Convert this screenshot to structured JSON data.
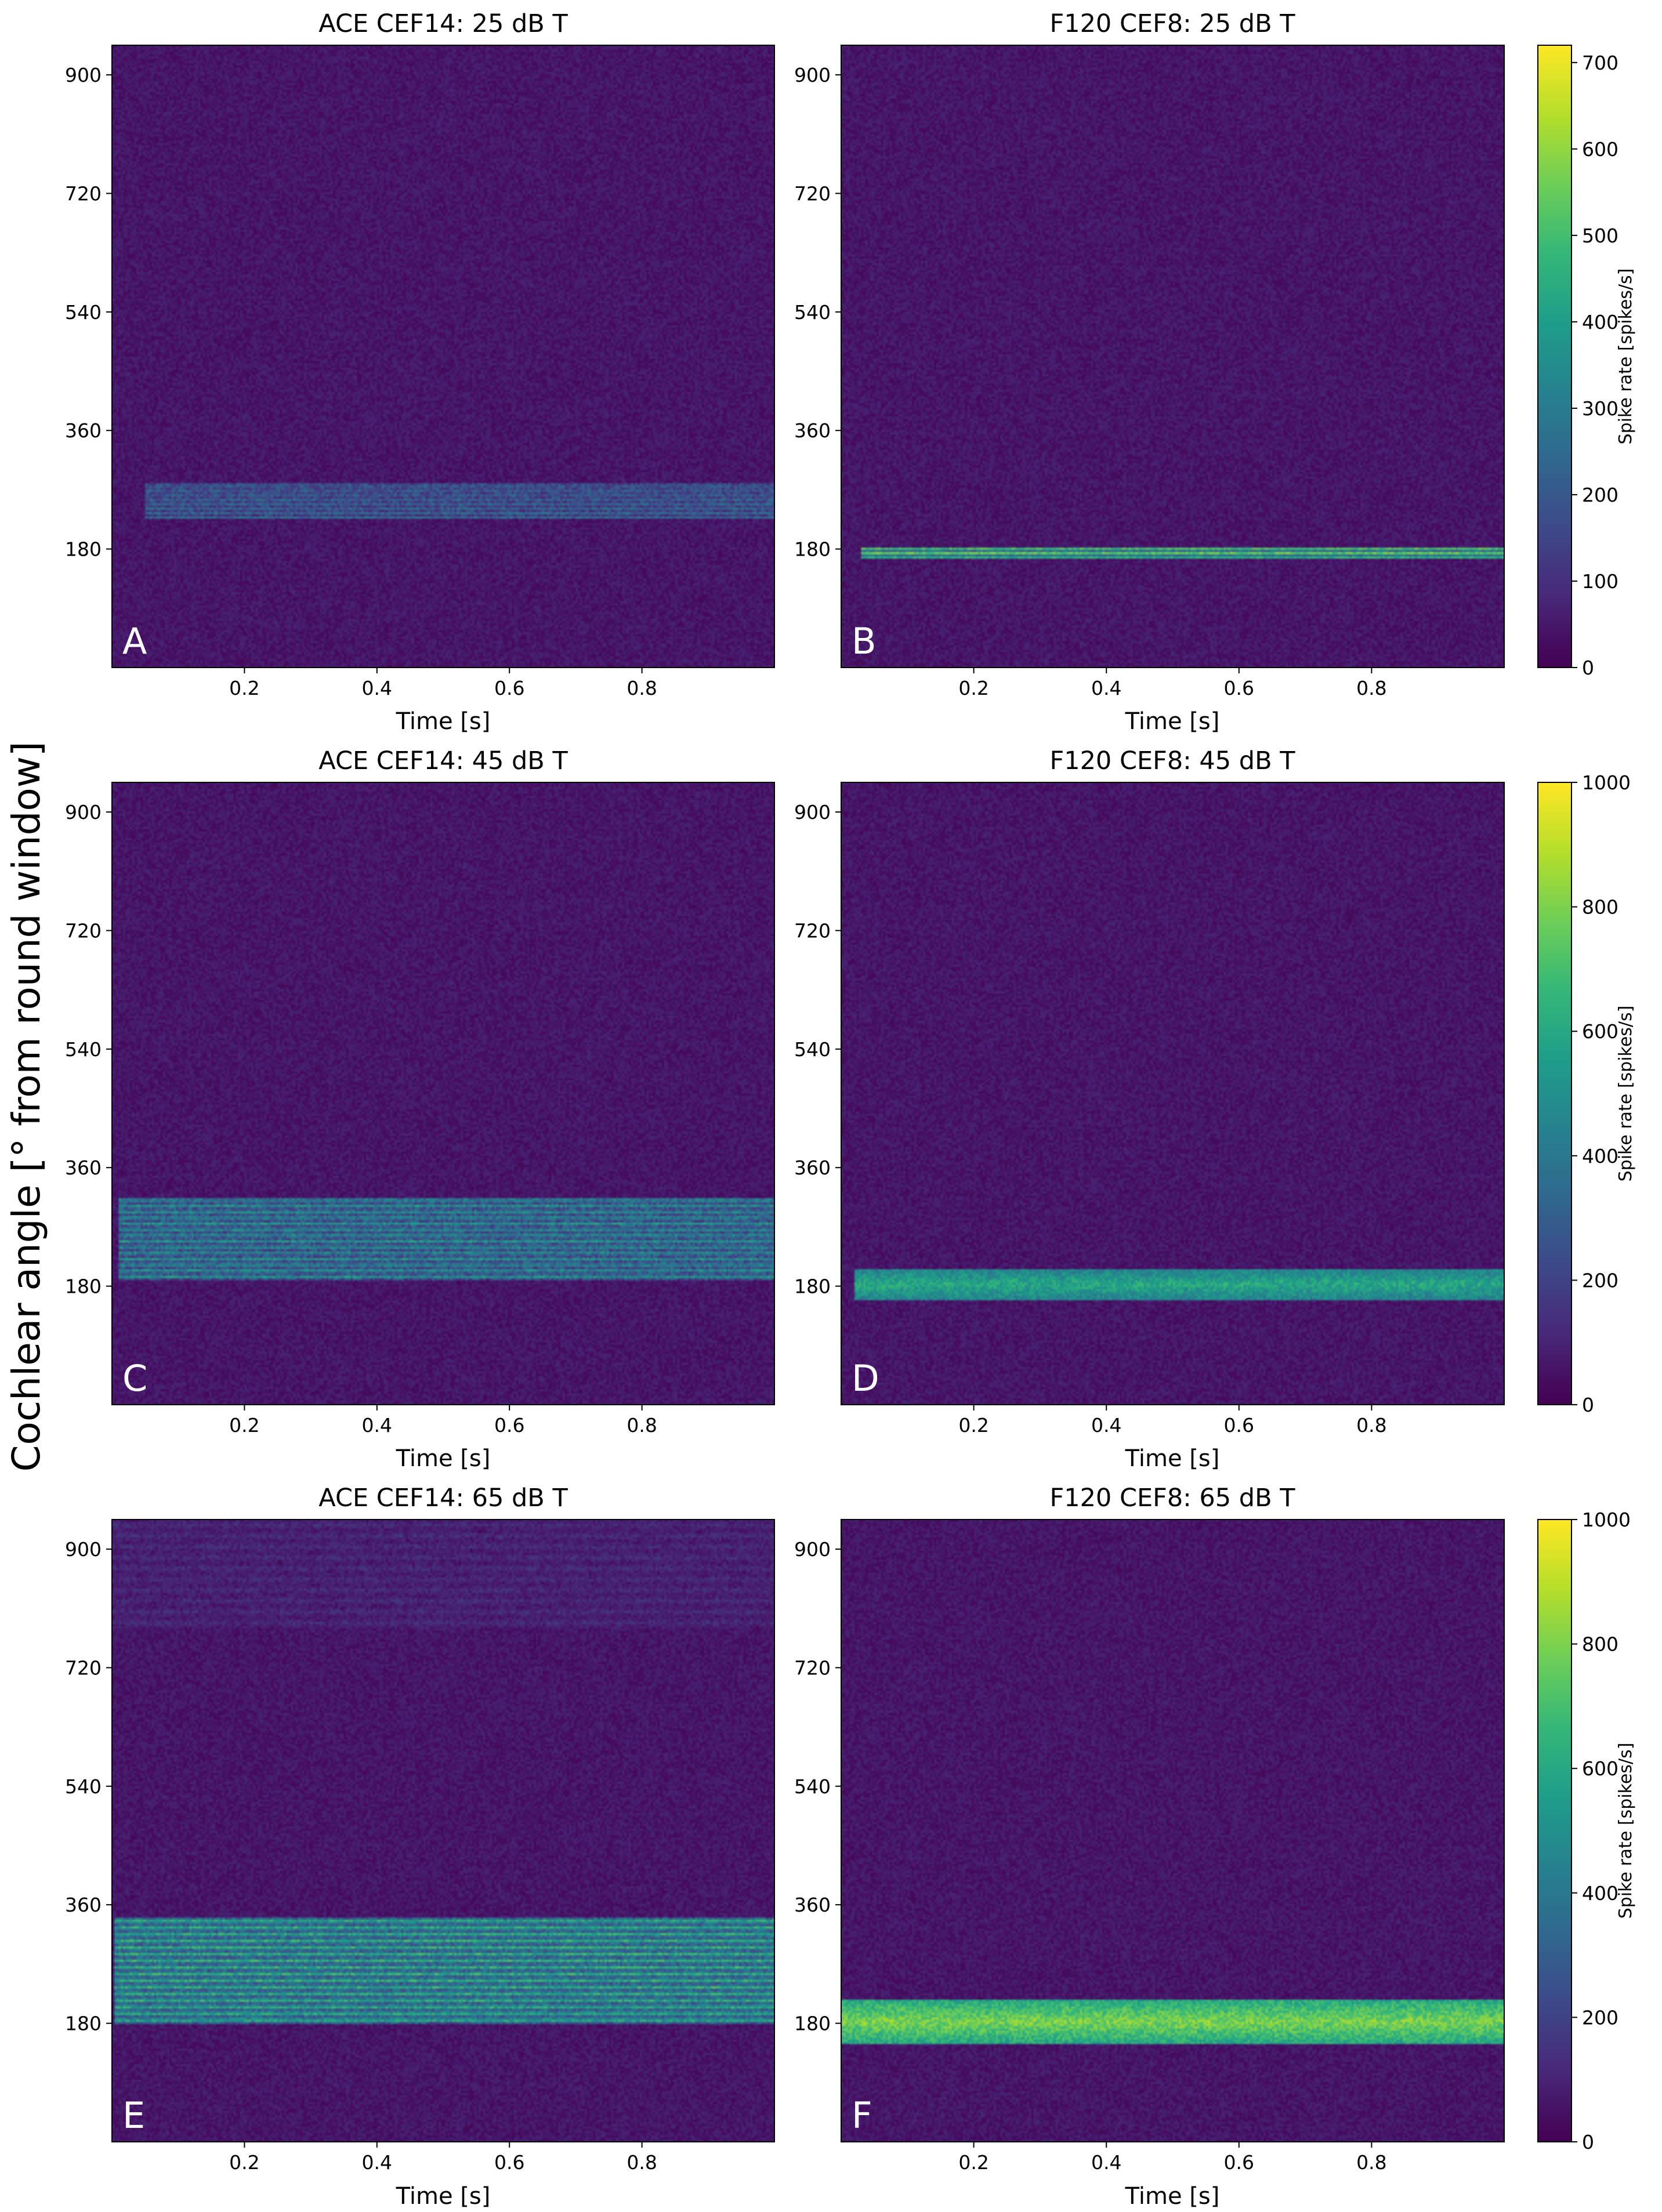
{
  "figure": {
    "ylabel": "Cochlear angle [° from round window]",
    "colorbar_label": "Spike rate [spikes/s]",
    "colormap": [
      "#440154",
      "#482878",
      "#3e4989",
      "#31688e",
      "#26828e",
      "#1f9e89",
      "#35b779",
      "#6ece58",
      "#b5de2b",
      "#fde725"
    ],
    "background_color": "#440154"
  },
  "chart_data": [
    {
      "type": "heatmap",
      "panel": "A",
      "title": "ACE CEF14: 25 dB T",
      "xlabel": "Time [s]",
      "xlim": [
        0,
        1.0
      ],
      "ylim": [
        0,
        945
      ],
      "xticks": [
        0.2,
        0.4,
        0.6,
        0.8
      ],
      "yticks": [
        180,
        360,
        540,
        720,
        900
      ],
      "colorbar": null,
      "bands": [
        {
          "t_start": 0.05,
          "t_end": 1.0,
          "y_low": 225,
          "y_high": 280,
          "lines": 8,
          "intensity": 0.36,
          "noise": 0.1
        }
      ]
    },
    {
      "type": "heatmap",
      "panel": "B",
      "title": "F120 CEF8: 25 dB T",
      "xlabel": "Time [s]",
      "xlim": [
        0,
        1.0
      ],
      "ylim": [
        0,
        945
      ],
      "xticks": [
        0.2,
        0.4,
        0.6,
        0.8
      ],
      "yticks": [
        180,
        360,
        540,
        720,
        900
      ],
      "colorbar": {
        "min": 0,
        "max": 720,
        "ticks": [
          0,
          100,
          200,
          300,
          400,
          500,
          600,
          700
        ]
      },
      "bands": [
        {
          "t_start": 0.03,
          "t_end": 1.0,
          "y_low": 165,
          "y_high": 183,
          "lines": 3,
          "intensity": 0.75,
          "noise": 0.1
        }
      ]
    },
    {
      "type": "heatmap",
      "panel": "C",
      "title": "ACE CEF14: 45 dB T",
      "xlabel": "Time [s]",
      "xlim": [
        0,
        1.0
      ],
      "ylim": [
        0,
        945
      ],
      "xticks": [
        0.2,
        0.4,
        0.6,
        0.8
      ],
      "yticks": [
        180,
        360,
        540,
        720,
        900
      ],
      "colorbar": null,
      "bands": [
        {
          "t_start": 0.01,
          "t_end": 1.0,
          "y_low": 190,
          "y_high": 315,
          "lines": 14,
          "intensity": 0.5,
          "noise": 0.12
        }
      ]
    },
    {
      "type": "heatmap",
      "panel": "D",
      "title": "F120 CEF8: 45 dB T",
      "xlabel": "Time [s]",
      "xlim": [
        0,
        1.0
      ],
      "ylim": [
        0,
        945
      ],
      "xticks": [
        0.2,
        0.4,
        0.6,
        0.8
      ],
      "yticks": [
        180,
        360,
        540,
        720,
        900
      ],
      "colorbar": {
        "min": 0,
        "max": 1000,
        "ticks": [
          0,
          200,
          400,
          600,
          800,
          1000
        ]
      },
      "bands": [
        {
          "t_start": 0.02,
          "t_end": 1.0,
          "y_low": 160,
          "y_high": 205,
          "lines": 0,
          "intensity": 0.6,
          "noise": 0.1
        }
      ]
    },
    {
      "type": "heatmap",
      "panel": "E",
      "title": "ACE CEF14: 65 dB T",
      "xlabel": "Time [s]",
      "xlim": [
        0,
        1.0
      ],
      "ylim": [
        0,
        945
      ],
      "xticks": [
        0.2,
        0.4,
        0.6,
        0.8
      ],
      "yticks": [
        180,
        360,
        540,
        720,
        900
      ],
      "colorbar": null,
      "bands": [
        {
          "t_start": 0.005,
          "t_end": 1.0,
          "y_low": 180,
          "y_high": 340,
          "lines": 16,
          "intensity": 0.62,
          "noise": 0.12
        },
        {
          "t_start": 0.0,
          "t_end": 1.0,
          "y_low": 780,
          "y_high": 945,
          "lines": 10,
          "intensity": 0.12,
          "noise": 0.06
        }
      ]
    },
    {
      "type": "heatmap",
      "panel": "F",
      "title": "F120 CEF8: 65 dB T",
      "xlabel": "Time [s]",
      "xlim": [
        0,
        1.0
      ],
      "ylim": [
        0,
        945
      ],
      "xticks": [
        0.2,
        0.4,
        0.6,
        0.8
      ],
      "yticks": [
        180,
        360,
        540,
        720,
        900
      ],
      "colorbar": {
        "min": 0,
        "max": 1000,
        "ticks": [
          0,
          200,
          400,
          600,
          800,
          1000
        ]
      },
      "bands": [
        {
          "t_start": 0.0,
          "t_end": 1.0,
          "y_low": 150,
          "y_high": 215,
          "lines": 0,
          "intensity": 0.8,
          "noise": 0.1
        }
      ]
    }
  ]
}
